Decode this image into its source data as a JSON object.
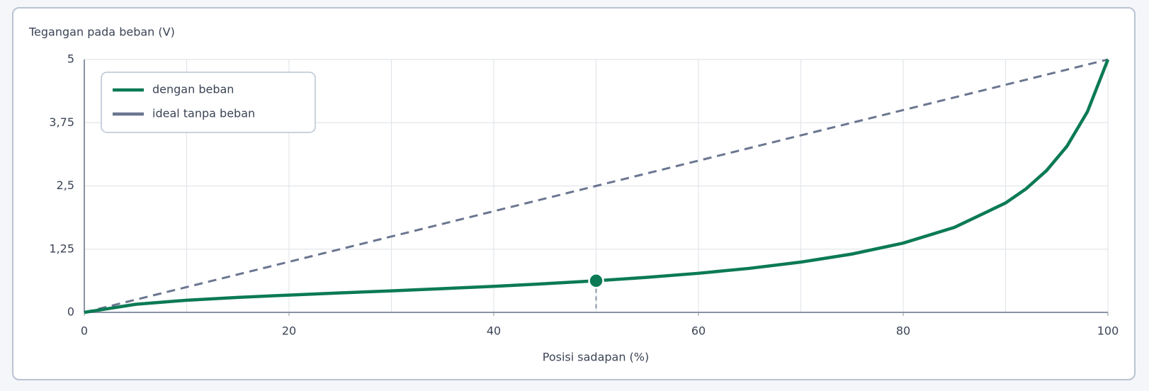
{
  "chart_data": {
    "type": "line",
    "y_label": "Tegangan pada beban (V)",
    "x_label": "Posisi sadapan (%)",
    "xlim": [
      0,
      100
    ],
    "ylim": [
      0,
      5
    ],
    "xticks": [
      0,
      20,
      40,
      60,
      80,
      100
    ],
    "xgrid": [
      0,
      10,
      20,
      30,
      40,
      50,
      60,
      70,
      80,
      90,
      100
    ],
    "yticks": [
      0,
      {
        "value": 1.25,
        "label": "1,25"
      },
      {
        "value": 2.5,
        "label": "2,5"
      },
      {
        "value": 3.75,
        "label": "3,75"
      },
      5
    ],
    "grid": true,
    "legend": "top-left",
    "series": [
      {
        "name": "dengan beban",
        "color": "#0b7a55",
        "dashed": false,
        "x": [
          0,
          5,
          10,
          15,
          20,
          25,
          30,
          35,
          40,
          45,
          50,
          55,
          60,
          65,
          70,
          75,
          80,
          85,
          90,
          92,
          94,
          96,
          98,
          100
        ],
        "values": [
          0,
          0.159,
          0.24,
          0.296,
          0.342,
          0.385,
          0.426,
          0.469,
          0.515,
          0.567,
          0.625,
          0.693,
          0.773,
          0.871,
          0.994,
          1.154,
          1.37,
          1.68,
          2.163,
          2.443,
          2.803,
          3.285,
          3.968,
          5
        ]
      },
      {
        "name": "ideal tanpa beban",
        "color": "#6b7690",
        "dashed": true,
        "x": [
          0,
          100
        ],
        "values": [
          0,
          5
        ]
      }
    ],
    "marker": {
      "x": 50,
      "y": 0.625,
      "color": "#0b7a55"
    }
  }
}
